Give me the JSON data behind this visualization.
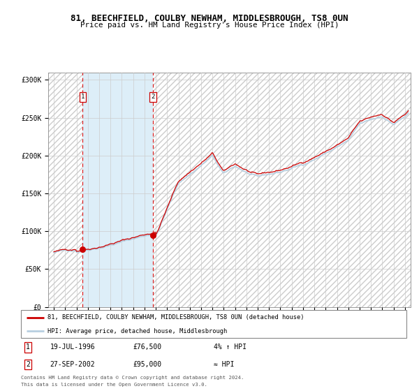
{
  "title1": "81, BEECHFIELD, COULBY NEWHAM, MIDDLESBROUGH, TS8 0UN",
  "title2": "Price paid vs. HM Land Registry's House Price Index (HPI)",
  "hpi_color": "#b8cfe0",
  "price_color": "#cc0000",
  "dot_color": "#cc0000",
  "hatch_color": "#cccccc",
  "highlight_bg": "#ddeef8",
  "transaction1_date": 1996.55,
  "transaction1_price": 76500,
  "transaction2_date": 2002.74,
  "transaction2_price": 95000,
  "ylim_max": 310000,
  "xlim_min": 1993.5,
  "xlim_max": 2025.5,
  "legend_line1": "81, BEECHFIELD, COULBY NEWHAM, MIDDLESBROUGH, TS8 0UN (detached house)",
  "legend_line2": "HPI: Average price, detached house, Middlesbrough",
  "table_row1_num": "1",
  "table_row1_date": "19-JUL-1996",
  "table_row1_price": "£76,500",
  "table_row1_note": "4% ↑ HPI",
  "table_row2_num": "2",
  "table_row2_date": "27-SEP-2002",
  "table_row2_price": "£95,000",
  "table_row2_note": "≈ HPI",
  "footnote1": "Contains HM Land Registry data © Crown copyright and database right 2024.",
  "footnote2": "This data is licensed under the Open Government Licence v3.0."
}
